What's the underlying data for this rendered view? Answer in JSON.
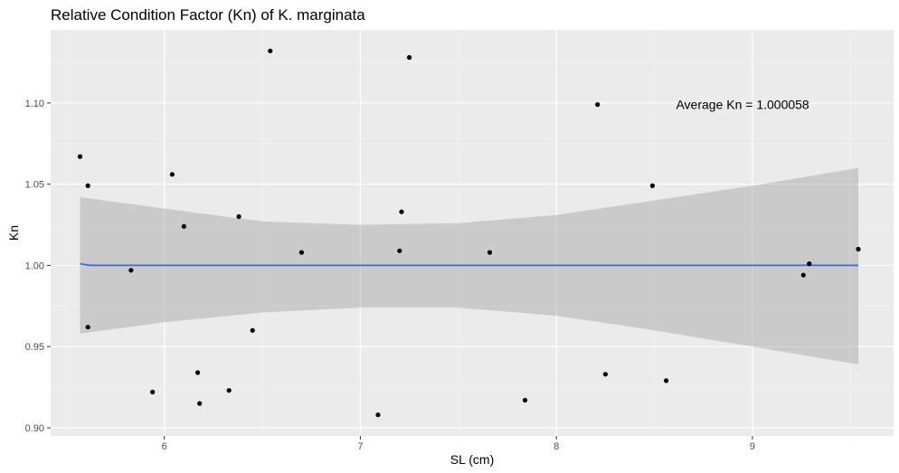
{
  "chart_data": {
    "type": "scatter",
    "title": "Relative Condition Factor (Kn) of K. marginata",
    "xlabel": "SL (cm)",
    "ylabel": "Kn",
    "xlim": [
      5.42,
      9.72
    ],
    "ylim": [
      0.895,
      1.145
    ],
    "x_ticks": [
      6,
      7,
      8,
      9
    ],
    "y_ticks": [
      0.9,
      0.95,
      1.0,
      1.05,
      1.1
    ],
    "x_tick_labels": [
      "6",
      "7",
      "8",
      "9"
    ],
    "y_tick_labels": [
      "0.90",
      "0.95",
      "1.00",
      "1.05",
      "1.10"
    ],
    "grid": true,
    "background": "#ebebeb",
    "point_color": "#000000",
    "line_color": "#3366ff",
    "band_color": "#cccccc",
    "annotation": {
      "text": "Average Kn = 1.000058",
      "x": 8.95,
      "y": 1.099
    },
    "points": [
      {
        "x": 5.57,
        "y": 1.067
      },
      {
        "x": 5.61,
        "y": 1.049
      },
      {
        "x": 5.61,
        "y": 0.962
      },
      {
        "x": 5.83,
        "y": 0.997
      },
      {
        "x": 5.94,
        "y": 0.922
      },
      {
        "x": 6.04,
        "y": 1.056
      },
      {
        "x": 6.1,
        "y": 1.024
      },
      {
        "x": 6.17,
        "y": 0.934
      },
      {
        "x": 6.18,
        "y": 0.915
      },
      {
        "x": 6.33,
        "y": 0.923
      },
      {
        "x": 6.38,
        "y": 1.03
      },
      {
        "x": 6.45,
        "y": 0.96
      },
      {
        "x": 6.54,
        "y": 1.132
      },
      {
        "x": 6.7,
        "y": 1.008
      },
      {
        "x": 7.09,
        "y": 0.908
      },
      {
        "x": 7.2,
        "y": 1.009
      },
      {
        "x": 7.21,
        "y": 1.033
      },
      {
        "x": 7.25,
        "y": 1.128
      },
      {
        "x": 7.66,
        "y": 1.008
      },
      {
        "x": 7.84,
        "y": 0.917
      },
      {
        "x": 8.21,
        "y": 1.099
      },
      {
        "x": 8.25,
        "y": 0.933
      },
      {
        "x": 8.49,
        "y": 1.049
      },
      {
        "x": 8.56,
        "y": 0.929
      },
      {
        "x": 9.26,
        "y": 0.994
      },
      {
        "x": 9.29,
        "y": 1.001
      },
      {
        "x": 9.54,
        "y": 1.01
      }
    ],
    "smooth": {
      "x": [
        5.57,
        5.62,
        9.54
      ],
      "y": [
        1.001,
        1.0,
        1.0
      ]
    },
    "band": {
      "x": [
        5.57,
        6.0,
        6.5,
        7.0,
        7.5,
        8.0,
        8.5,
        9.0,
        9.54
      ],
      "upper": [
        1.042,
        1.035,
        1.027,
        1.025,
        1.026,
        1.031,
        1.04,
        1.049,
        1.06
      ],
      "lower": [
        0.958,
        0.965,
        0.971,
        0.974,
        0.974,
        0.969,
        0.96,
        0.95,
        0.939
      ]
    }
  }
}
